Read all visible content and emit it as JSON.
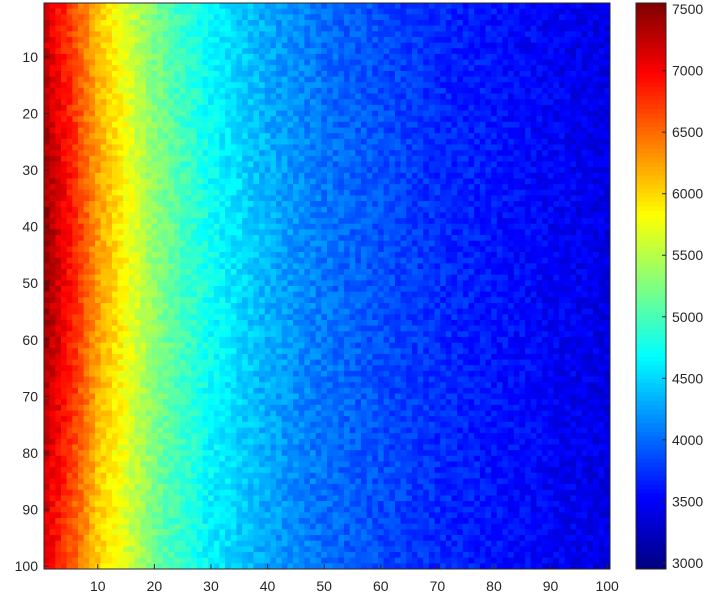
{
  "chart_data": {
    "type": "heatmap",
    "title": "",
    "xlabel": "",
    "ylabel": "",
    "rows": 100,
    "cols": 100,
    "xlim": [
      1,
      100
    ],
    "ylim": [
      1,
      100
    ],
    "y_direction": "reversed",
    "x_ticks": [
      10,
      20,
      30,
      40,
      50,
      60,
      70,
      80,
      90,
      100
    ],
    "y_ticks": [
      10,
      20,
      30,
      40,
      50,
      60,
      70,
      80,
      90,
      100
    ],
    "colormap": "jet",
    "color_range": [
      2950,
      7550
    ],
    "colorbar": {
      "placement": "right",
      "ticks": [
        3000,
        3500,
        4000,
        4500,
        5000,
        5500,
        6000,
        6500,
        7000,
        7500
      ]
    },
    "column_profile": [
      {
        "col": 1,
        "value": 7000
      },
      {
        "col": 5,
        "value": 6600
      },
      {
        "col": 10,
        "value": 6000
      },
      {
        "col": 15,
        "value": 5600
      },
      {
        "col": 20,
        "value": 5150
      },
      {
        "col": 25,
        "value": 4850
      },
      {
        "col": 30,
        "value": 4600
      },
      {
        "col": 40,
        "value": 4250
      },
      {
        "col": 50,
        "value": 4000
      },
      {
        "col": 60,
        "value": 3850
      },
      {
        "col": 70,
        "value": 3700
      },
      {
        "col": 80,
        "value": 3600
      },
      {
        "col": 90,
        "value": 3500
      },
      {
        "col": 100,
        "value": 3400
      }
    ],
    "row_peak": 45,
    "peak_boost": 400,
    "noise_amplitude": 150
  }
}
